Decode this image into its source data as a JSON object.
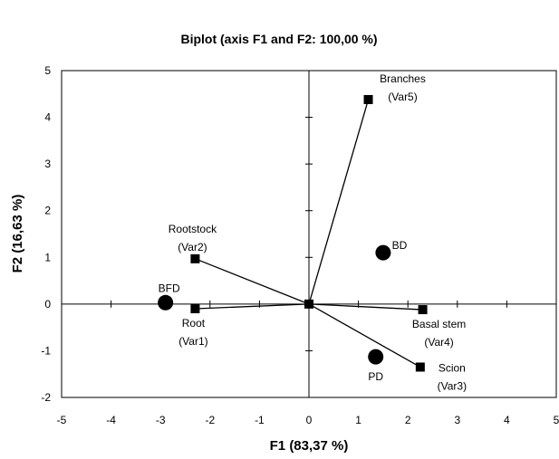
{
  "chart_data": {
    "type": "scatter",
    "title": "Biplot (axis F1 and F2: 100,00 %)",
    "xlabel": "F1 (83,37 %)",
    "ylabel": "F2 (16,63 %)",
    "xlim": [
      -5,
      5
    ],
    "ylim": [
      -2,
      5
    ],
    "xticks": [
      "-5",
      "-4",
      "-3",
      "-2",
      "-1",
      "0",
      "1",
      "2",
      "3",
      "4",
      "5"
    ],
    "yticks": [
      "-2",
      "-1",
      "0",
      "1",
      "2",
      "3",
      "4",
      "5"
    ],
    "grid": false,
    "series": [
      {
        "kind": "variables",
        "marker": "square",
        "points": [
          {
            "id": "root",
            "label": [
              "Root",
              "(Var1)"
            ],
            "x": -2.3,
            "y": -0.1
          },
          {
            "id": "rootstock",
            "label": [
              "Rootstock",
              "(Var2)"
            ],
            "x": -2.3,
            "y": 0.97
          },
          {
            "id": "scion",
            "label": [
              "Scion",
              "(Var3)"
            ],
            "x": 2.25,
            "y": -1.35
          },
          {
            "id": "basal-stem",
            "label": [
              "Basal stem",
              "(Var4)"
            ],
            "x": 2.3,
            "y": -0.12
          },
          {
            "id": "branches",
            "label": [
              "Branches",
              "(Var5)"
            ],
            "x": 1.2,
            "y": 4.38
          }
        ]
      },
      {
        "kind": "observations",
        "marker": "circle",
        "points": [
          {
            "id": "bfd",
            "label": [
              "BFD"
            ],
            "x": -2.9,
            "y": 0.03
          },
          {
            "id": "bd",
            "label": [
              "BD"
            ],
            "x": 1.5,
            "y": 1.1
          },
          {
            "id": "pd",
            "label": [
              "PD"
            ],
            "x": 1.35,
            "y": -1.13
          }
        ]
      }
    ]
  }
}
